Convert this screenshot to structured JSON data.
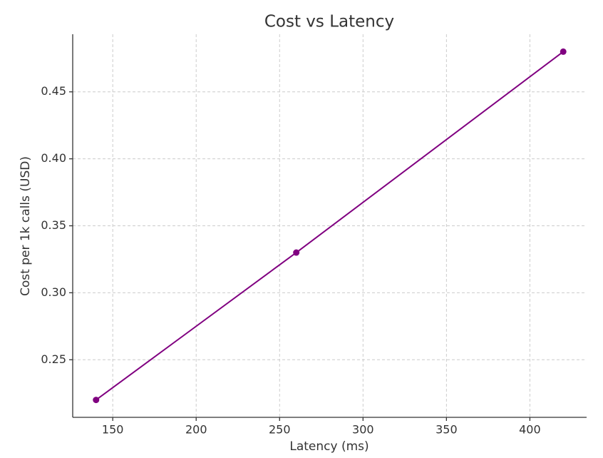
{
  "chart_data": {
    "type": "line",
    "title": "Cost vs Latency",
    "x_label": "Latency (ms)",
    "y_label": "Cost per 1k calls (USD)",
    "x": [
      140,
      260,
      420
    ],
    "series": [
      {
        "color": "#800080",
        "values": [
          0.22,
          0.33,
          0.48
        ]
      }
    ],
    "xlim": [
      126,
      434
    ],
    "ylim": [
      0.207,
      0.493
    ],
    "xticks": [
      150,
      200,
      250,
      300,
      350,
      400
    ],
    "yticks": [
      0.25,
      {
        "value": 0.3,
        "label": "0.30"
      },
      0.35,
      {
        "value": 0.4,
        "label": "0.40"
      },
      0.45
    ],
    "grid": true
  }
}
